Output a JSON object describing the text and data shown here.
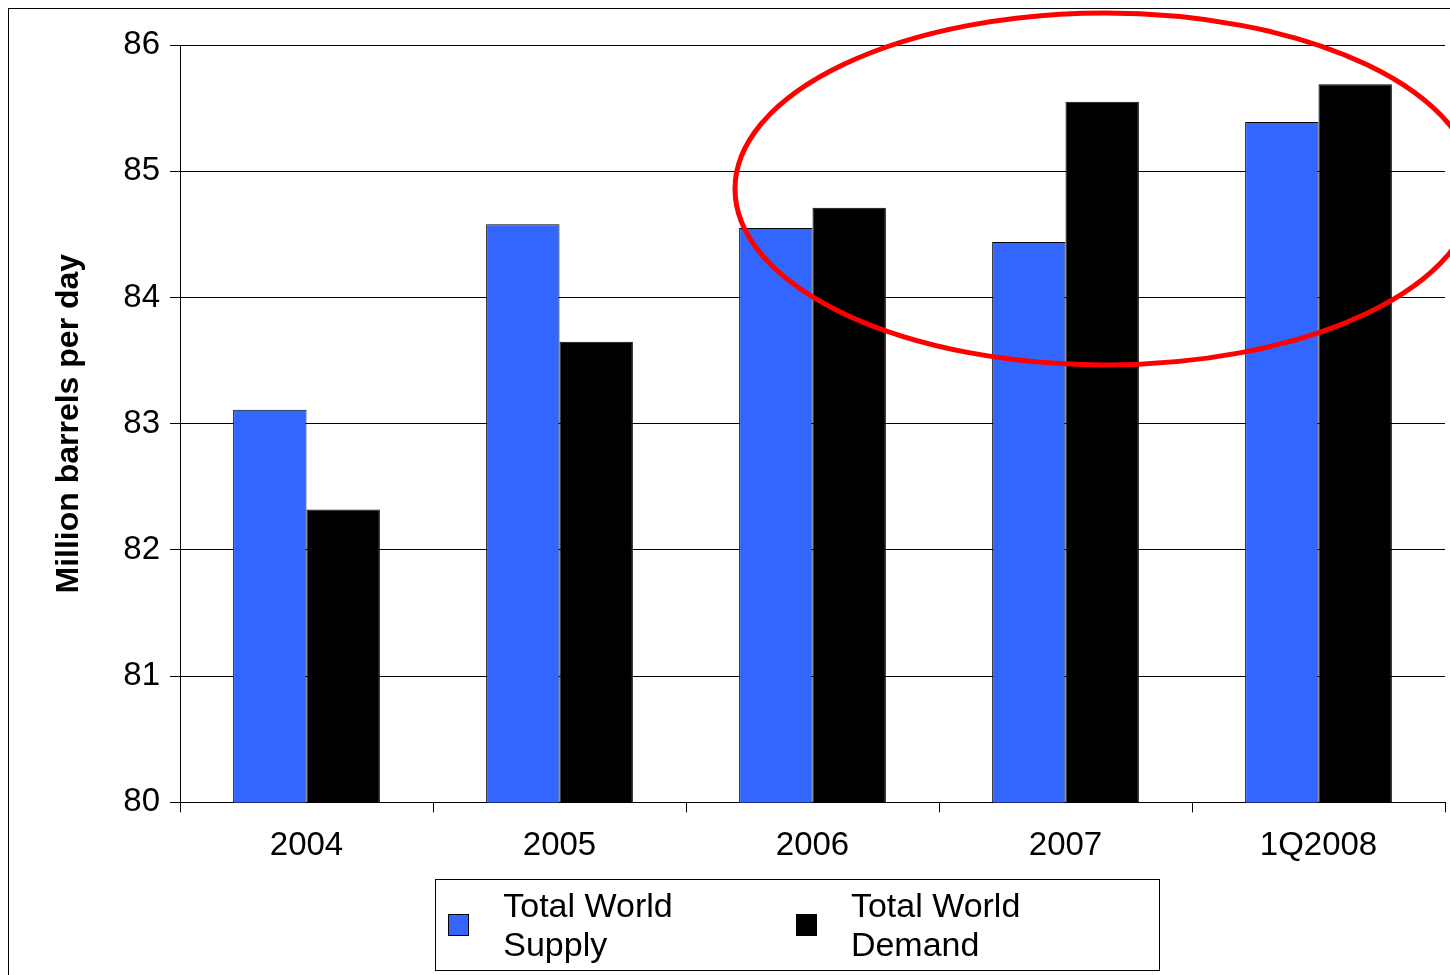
{
  "chart_data": {
    "type": "bar",
    "ylabel": "Million barrels per day",
    "categories": [
      "2004",
      "2005",
      "2006",
      "2007",
      "1Q2008"
    ],
    "series": [
      {
        "name": "Total World Supply",
        "color": "#3366ff",
        "values": [
          83.11,
          84.58,
          84.55,
          84.44,
          85.39
        ]
      },
      {
        "name": "Total World Demand",
        "color": "#000000",
        "values": [
          82.32,
          83.65,
          84.71,
          85.55,
          85.69
        ]
      }
    ],
    "ylim": [
      80,
      86
    ],
    "yticks": [
      80,
      81,
      82,
      83,
      84,
      85,
      86
    ],
    "grid": "y",
    "legend": "bottom"
  }
}
